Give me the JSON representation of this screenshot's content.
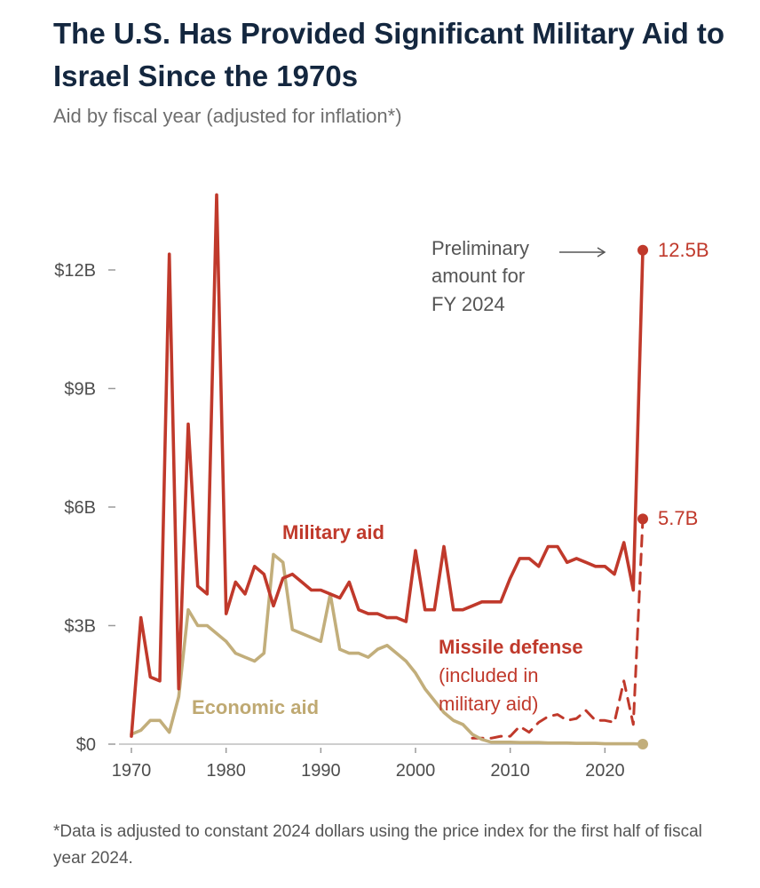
{
  "title": "The U.S. Has Provided Significant Military Aid to Israel Since the 1970s",
  "subtitle": "Aid by fiscal year (adjusted for inflation*)",
  "footnote": "*Data is adjusted to constant 2024 dollars using the price index for the first half of fiscal year 2024.",
  "colors": {
    "military": "#c0392b",
    "economic": "#c2ae7b",
    "axis": "#9a9a9a",
    "text": "#4d4d4d",
    "title": "#14273f"
  },
  "chart_data": {
    "type": "line",
    "title": "The U.S. Has Provided Significant Military Aid to Israel Since the 1970s",
    "subtitle": "Aid by fiscal year (adjusted for inflation*)",
    "xlabel": "",
    "ylabel": "",
    "xlim": [
      1970,
      2024
    ],
    "ylim": [
      0,
      14
    ],
    "x_ticks": [
      1970,
      1980,
      1990,
      2000,
      2010,
      2020
    ],
    "y_ticks": [
      0,
      3,
      6,
      9,
      12
    ],
    "y_tick_labels": [
      "$0",
      "$3B",
      "$6B",
      "$9B",
      "$12B"
    ],
    "series": [
      {
        "name": "Military aid",
        "style": "solid",
        "x": [
          1970,
          1971,
          1972,
          1973,
          1974,
          1975,
          1976,
          1977,
          1978,
          1979,
          1980,
          1981,
          1982,
          1983,
          1984,
          1985,
          1986,
          1987,
          1988,
          1989,
          1990,
          1991,
          1992,
          1993,
          1994,
          1995,
          1996,
          1997,
          1998,
          1999,
          2000,
          2001,
          2002,
          2003,
          2004,
          2005,
          2006,
          2007,
          2008,
          2009,
          2010,
          2011,
          2012,
          2013,
          2014,
          2015,
          2016,
          2017,
          2018,
          2019,
          2020,
          2021,
          2022,
          2023,
          2024
        ],
        "values": [
          0.2,
          3.2,
          1.7,
          1.6,
          12.4,
          1.4,
          8.1,
          4.0,
          3.8,
          13.9,
          3.3,
          4.1,
          3.8,
          4.5,
          4.3,
          3.5,
          4.2,
          4.3,
          4.1,
          3.9,
          3.9,
          3.8,
          3.7,
          4.1,
          3.4,
          3.3,
          3.3,
          3.2,
          3.2,
          3.1,
          4.9,
          3.4,
          3.4,
          5.0,
          3.4,
          3.4,
          3.5,
          3.6,
          3.6,
          3.6,
          4.2,
          4.7,
          4.7,
          4.5,
          5.0,
          5.0,
          4.6,
          4.7,
          4.6,
          4.5,
          4.5,
          4.3,
          5.1,
          3.9,
          12.5
        ]
      },
      {
        "name": "Economic aid",
        "style": "solid",
        "x": [
          1970,
          1971,
          1972,
          1973,
          1974,
          1975,
          1976,
          1977,
          1978,
          1979,
          1980,
          1981,
          1982,
          1983,
          1984,
          1985,
          1986,
          1987,
          1988,
          1989,
          1990,
          1991,
          1992,
          1993,
          1994,
          1995,
          1996,
          1997,
          1998,
          1999,
          2000,
          2001,
          2002,
          2003,
          2004,
          2005,
          2006,
          2007,
          2008,
          2009,
          2010,
          2011,
          2012,
          2013,
          2014,
          2015,
          2016,
          2017,
          2018,
          2019,
          2020,
          2021,
          2022,
          2023,
          2024
        ],
        "values": [
          0.25,
          0.35,
          0.6,
          0.6,
          0.3,
          1.2,
          3.4,
          3.0,
          3.0,
          2.8,
          2.6,
          2.3,
          2.2,
          2.1,
          2.3,
          4.8,
          4.6,
          2.9,
          2.8,
          2.7,
          2.6,
          3.8,
          2.4,
          2.3,
          2.3,
          2.2,
          2.4,
          2.5,
          2.3,
          2.1,
          1.8,
          1.4,
          1.1,
          0.8,
          0.6,
          0.5,
          0.25,
          0.12,
          0.05,
          0.05,
          0.05,
          0.04,
          0.04,
          0.04,
          0.03,
          0.03,
          0.03,
          0.02,
          0.02,
          0.02,
          0.01,
          0.01,
          0.01,
          0.01,
          0.0
        ]
      },
      {
        "name": "Missile defense (included in military aid)",
        "style": "dashed",
        "x": [
          2006,
          2007,
          2008,
          2009,
          2010,
          2011,
          2012,
          2013,
          2014,
          2015,
          2016,
          2017,
          2018,
          2019,
          2020,
          2021,
          2022,
          2023,
          2024
        ],
        "values": [
          0.15,
          0.15,
          0.15,
          0.2,
          0.2,
          0.45,
          0.3,
          0.55,
          0.7,
          0.75,
          0.6,
          0.65,
          0.85,
          0.6,
          0.6,
          0.55,
          1.6,
          0.5,
          5.7
        ]
      }
    ],
    "annotations": {
      "military_label": "Military aid",
      "economic_label": "Economic aid",
      "missile_line1": "Missile defense",
      "missile_line2": "(included in",
      "missile_line3": "military aid)",
      "prelim_line1": "Preliminary",
      "prelim_line2": "amount for",
      "prelim_line3": "FY 2024",
      "end_military": "12.5B",
      "end_missile": "5.7B"
    }
  }
}
